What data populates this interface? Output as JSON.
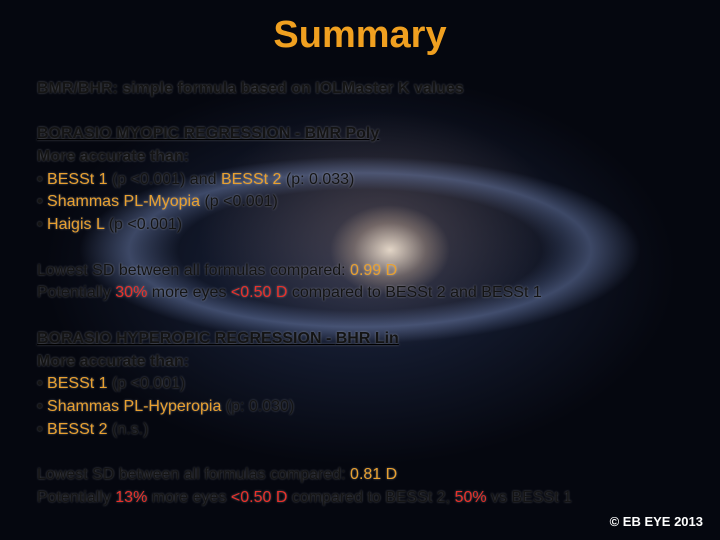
{
  "title": "Summary",
  "blocks": [
    [
      {
        "bold": true,
        "segments": [
          {
            "text": "BMR/BHR: simple formula based on IOLMaster K values",
            "color": "#141414"
          }
        ]
      }
    ],
    [
      {
        "bold": true,
        "underline": true,
        "segments": [
          {
            "text": "BORASIO MYOPIC REGRESSION - ",
            "color": "#141414"
          },
          {
            "text": "BMR Poly",
            "color": "#141414"
          }
        ]
      },
      {
        "bold": true,
        "segments": [
          {
            "text": "More accurate than:",
            "color": "#141414"
          }
        ]
      },
      {
        "segments": [
          {
            "text": "• ",
            "color": "#141414"
          },
          {
            "text": "BESSt 1",
            "color": "#e8a030"
          },
          {
            "text": " (p <0.001) and ",
            "color": "#141414"
          },
          {
            "text": "BESSt 2",
            "color": "#e8a030"
          },
          {
            "text": " (p: 0.033)",
            "color": "#141414"
          }
        ]
      },
      {
        "segments": [
          {
            "text": "• ",
            "color": "#141414"
          },
          {
            "text": "Shammas PL-Myopia",
            "color": "#e8a030"
          },
          {
            "text": " (p <0.001)",
            "color": "#141414"
          }
        ]
      },
      {
        "segments": [
          {
            "text": "• ",
            "color": "#141414"
          },
          {
            "text": "Haigis L",
            "color": "#e8a030"
          },
          {
            "text": " (p <0.001)",
            "color": "#141414"
          }
        ]
      }
    ],
    [
      {
        "segments": [
          {
            "text": "Lowest SD between all formulas compared: ",
            "color": "#141414"
          },
          {
            "text": "0.99 D",
            "color": "#e8a030"
          }
        ]
      },
      {
        "segments": [
          {
            "text": "Potentially ",
            "color": "#141414"
          },
          {
            "text": "30%",
            "color": "#e8302a"
          },
          {
            "text": " more eyes ",
            "color": "#141414"
          },
          {
            "text": "<0.50 D",
            "color": "#e8302a"
          },
          {
            "text": " compared to BESSt 2 and BESSt 1",
            "color": "#141414"
          }
        ]
      }
    ],
    [
      {
        "bold": true,
        "underline": true,
        "segments": [
          {
            "text": "BORASIO HYPEROPIC REGRESSION - ",
            "color": "#141414"
          },
          {
            "text": "BHR Lin",
            "color": "#141414"
          }
        ]
      },
      {
        "bold": true,
        "segments": [
          {
            "text": "More accurate than:",
            "color": "#141414"
          }
        ]
      },
      {
        "segments": [
          {
            "text": "• ",
            "color": "#141414"
          },
          {
            "text": "BESSt 1",
            "color": "#e8a030"
          },
          {
            "text": " (p <0.001)",
            "color": "#141414"
          }
        ]
      },
      {
        "segments": [
          {
            "text": "• ",
            "color": "#141414"
          },
          {
            "text": "Shammas PL-Hyperopia",
            "color": "#e8a030"
          },
          {
            "text": " (p: 0.030)",
            "color": "#141414"
          }
        ]
      },
      {
        "segments": [
          {
            "text": "• ",
            "color": "#141414"
          },
          {
            "text": "BESSt 2",
            "color": "#e8a030"
          },
          {
            "text": " (n.s.)",
            "color": "#141414"
          }
        ]
      }
    ],
    [
      {
        "segments": [
          {
            "text": "Lowest SD between all formulas compared: ",
            "color": "#141414"
          },
          {
            "text": "0.81 D",
            "color": "#e8a030"
          }
        ]
      },
      {
        "segments": [
          {
            "text": "Potentially ",
            "color": "#141414"
          },
          {
            "text": "13%",
            "color": "#e8302a"
          },
          {
            "text": " more eyes ",
            "color": "#141414"
          },
          {
            "text": "<0.50 D",
            "color": "#e8302a"
          },
          {
            "text": " compared to BESSt 2, ",
            "color": "#141414"
          },
          {
            "text": "50%",
            "color": "#e8302a"
          },
          {
            "text": " vs BESSt 1",
            "color": "#141414"
          }
        ]
      }
    ]
  ],
  "copyright": "© EB EYE 2013"
}
